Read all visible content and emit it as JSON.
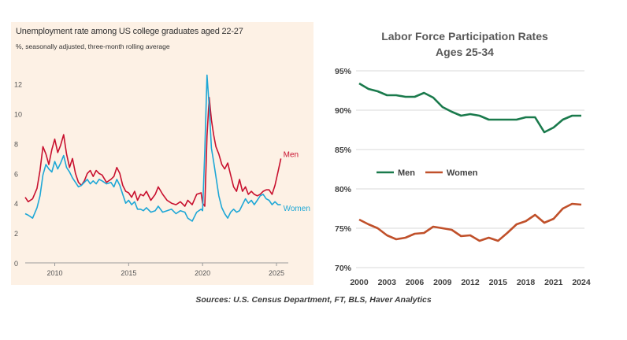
{
  "chart_data": [
    {
      "type": "line",
      "title": "Unemployment rate among US college graduates aged 22-27",
      "subtitle": "%, seasonally adjusted, three-month rolling average",
      "x_ticks": [
        2010,
        2015,
        2020,
        2025
      ],
      "y_ticks": [
        0,
        2,
        4,
        6,
        8,
        10,
        12
      ],
      "xlim": [
        2008.0,
        2025.8
      ],
      "ylim": [
        0,
        13.2
      ],
      "grid": false,
      "colors": {
        "Men": "#c8102e",
        "Women": "#1ea7d6"
      },
      "series": [
        {
          "name": "Men",
          "x": [
            2008.0,
            2008.2,
            2008.5,
            2008.8,
            2009.0,
            2009.2,
            2009.4,
            2009.6,
            2009.8,
            2010.0,
            2010.2,
            2010.4,
            2010.6,
            2010.8,
            2011.0,
            2011.2,
            2011.4,
            2011.6,
            2011.8,
            2012.0,
            2012.2,
            2012.4,
            2012.6,
            2012.8,
            2013.0,
            2013.2,
            2013.5,
            2013.8,
            2014.0,
            2014.2,
            2014.4,
            2014.6,
            2014.8,
            2015.0,
            2015.2,
            2015.4,
            2015.6,
            2015.8,
            2016.0,
            2016.2,
            2016.5,
            2016.8,
            2017.0,
            2017.3,
            2017.6,
            2017.9,
            2018.2,
            2018.5,
            2018.8,
            2019.0,
            2019.3,
            2019.6,
            2019.9,
            2020.0,
            2020.15,
            2020.3,
            2020.45,
            2020.6,
            2020.75,
            2020.9,
            2021.1,
            2021.3,
            2021.5,
            2021.7,
            2021.9,
            2022.1,
            2022.3,
            2022.5,
            2022.7,
            2022.9,
            2023.1,
            2023.3,
            2023.5,
            2023.7,
            2023.9,
            2024.1,
            2024.3,
            2024.5,
            2024.7,
            2024.9,
            2025.1,
            2025.3
          ],
          "values": [
            4.4,
            4.1,
            4.3,
            5.0,
            6.2,
            7.8,
            7.3,
            6.6,
            7.6,
            8.3,
            7.4,
            7.9,
            8.6,
            7.3,
            6.4,
            7.0,
            6.0,
            5.4,
            5.2,
            5.5,
            6.0,
            6.2,
            5.8,
            6.2,
            6.0,
            5.9,
            5.4,
            5.6,
            5.8,
            6.4,
            6.0,
            5.2,
            4.8,
            4.7,
            4.4,
            4.8,
            4.2,
            4.6,
            4.5,
            4.8,
            4.2,
            4.6,
            5.1,
            4.6,
            4.2,
            4.0,
            3.9,
            4.1,
            3.8,
            4.2,
            3.9,
            4.6,
            4.7,
            4.0,
            3.8,
            8.5,
            11.1,
            9.6,
            8.6,
            7.8,
            7.3,
            6.6,
            6.3,
            6.7,
            5.9,
            5.1,
            4.8,
            5.6,
            4.8,
            5.1,
            4.6,
            4.8,
            4.6,
            4.5,
            4.6,
            4.8,
            4.9,
            4.9,
            4.6,
            5.2,
            6.1,
            7.0
          ]
        },
        {
          "name": "Women",
          "x": [
            2008.0,
            2008.2,
            2008.5,
            2008.8,
            2009.0,
            2009.2,
            2009.4,
            2009.6,
            2009.8,
            2010.0,
            2010.2,
            2010.4,
            2010.6,
            2010.8,
            2011.0,
            2011.2,
            2011.4,
            2011.6,
            2011.8,
            2012.0,
            2012.2,
            2012.4,
            2012.6,
            2012.8,
            2013.0,
            2013.2,
            2013.5,
            2013.8,
            2014.0,
            2014.2,
            2014.4,
            2014.6,
            2014.8,
            2015.0,
            2015.2,
            2015.4,
            2015.6,
            2015.8,
            2016.0,
            2016.2,
            2016.5,
            2016.8,
            2017.0,
            2017.3,
            2017.6,
            2017.9,
            2018.2,
            2018.5,
            2018.8,
            2019.0,
            2019.3,
            2019.6,
            2019.9,
            2020.0,
            2020.15,
            2020.3,
            2020.45,
            2020.6,
            2020.75,
            2020.9,
            2021.1,
            2021.3,
            2021.5,
            2021.7,
            2021.9,
            2022.1,
            2022.3,
            2022.5,
            2022.7,
            2022.9,
            2023.1,
            2023.3,
            2023.5,
            2023.7,
            2023.9,
            2024.1,
            2024.3,
            2024.5,
            2024.7,
            2024.9,
            2025.1,
            2025.3
          ],
          "values": [
            3.3,
            3.2,
            3.0,
            3.7,
            4.5,
            5.9,
            6.6,
            6.3,
            6.1,
            6.8,
            6.3,
            6.7,
            7.2,
            6.4,
            6.1,
            5.7,
            5.4,
            5.1,
            5.2,
            5.4,
            5.6,
            5.3,
            5.5,
            5.3,
            5.6,
            5.5,
            5.3,
            5.4,
            5.1,
            5.6,
            5.2,
            4.6,
            4.0,
            4.2,
            3.9,
            4.1,
            3.6,
            3.6,
            3.5,
            3.7,
            3.4,
            3.5,
            3.8,
            3.4,
            3.5,
            3.6,
            3.3,
            3.5,
            3.4,
            3.0,
            2.8,
            3.4,
            3.6,
            3.5,
            7.5,
            12.6,
            10.5,
            7.7,
            6.8,
            5.8,
            4.5,
            3.7,
            3.3,
            3.0,
            3.4,
            3.6,
            3.4,
            3.5,
            3.9,
            4.3,
            4.0,
            4.2,
            3.9,
            4.2,
            4.5,
            4.6,
            4.3,
            4.2,
            3.9,
            4.1,
            3.9,
            3.9
          ]
        }
      ],
      "annotations": [
        "Men",
        "Women"
      ]
    },
    {
      "type": "line",
      "title": "Labor Force Participation Rates",
      "subtitle": "Ages 25-34",
      "categories": [
        "2000",
        "2001",
        "2002",
        "2003",
        "2004",
        "2005",
        "2006",
        "2007",
        "2008",
        "2009",
        "2010",
        "2011",
        "2012",
        "2013",
        "2014",
        "2015",
        "2016",
        "2017",
        "2018",
        "2019",
        "2020",
        "2021",
        "2022",
        "2023",
        "2024"
      ],
      "x_tick_labels": [
        "2000",
        "2003",
        "2006",
        "2009",
        "2012",
        "2015",
        "2018",
        "2021",
        "2024"
      ],
      "y_ticks": [
        "70%",
        "75%",
        "80%",
        "85%",
        "90%",
        "95%"
      ],
      "ylim": [
        70,
        95
      ],
      "grid": true,
      "legend_position": "center-left",
      "colors": {
        "Men": "#1a7a4c",
        "Women": "#c0502a"
      },
      "series": [
        {
          "name": "Men",
          "values": [
            93.4,
            92.7,
            92.4,
            91.9,
            91.9,
            91.7,
            91.7,
            92.2,
            91.6,
            90.4,
            89.8,
            89.3,
            89.5,
            89.3,
            88.8,
            88.8,
            88.8,
            88.8,
            89.1,
            89.1,
            87.2,
            87.8,
            88.8,
            89.3,
            89.3
          ]
        },
        {
          "name": "Women",
          "values": [
            76.1,
            75.5,
            75.0,
            74.1,
            73.6,
            73.8,
            74.3,
            74.4,
            75.2,
            75.0,
            74.8,
            74.0,
            74.1,
            73.4,
            73.8,
            73.4,
            74.4,
            75.5,
            75.9,
            76.7,
            75.7,
            76.2,
            77.5,
            78.1,
            78.0
          ]
        }
      ]
    }
  ],
  "source": "Sources: U.S. Census Department, FT, BLS, Haver Analytics"
}
